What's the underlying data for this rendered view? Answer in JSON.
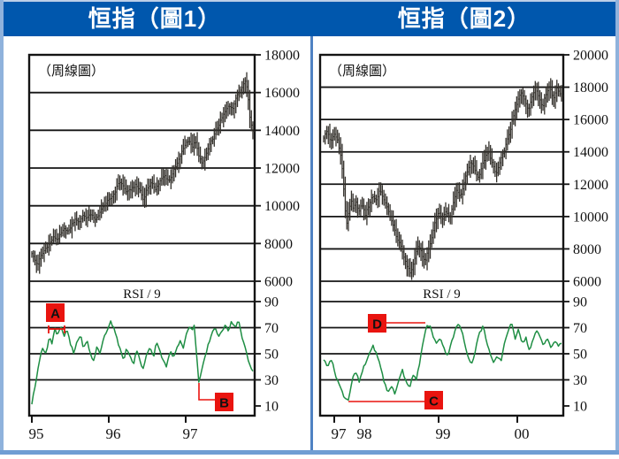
{
  "page": {
    "accent_blue": "#0057ad",
    "border_blue": "#8fb2dc",
    "divider_blue": "#4f82c3",
    "annotation_red": "#e9140f",
    "rsi_green": "#1f8e44",
    "bar_color": "#33302b"
  },
  "header": {
    "left_title": "恒指（圖1）",
    "right_title": "恒指（圖2）"
  },
  "chart_data": [
    {
      "type": "bar",
      "style": "weekly-ohlc-bars-with-rsi",
      "title": "恒指（圖1）",
      "subtitle": "（周線圖）",
      "price_axis": {
        "labels": [
          18000,
          16000,
          14000,
          12000,
          10000,
          8000,
          6000
        ],
        "ylim": [
          6000,
          18000
        ]
      },
      "rsi_axis": {
        "title": "RSI / 9",
        "labels": [
          90,
          70,
          50,
          30,
          10
        ],
        "ylim": [
          10,
          90
        ]
      },
      "x_axis": {
        "ticks": [
          "95",
          "96",
          "97"
        ]
      },
      "price_points": [
        [
          0.0,
          7500
        ],
        [
          0.01,
          7200
        ],
        [
          0.025,
          6850
        ],
        [
          0.04,
          7300
        ],
        [
          0.06,
          7700
        ],
        [
          0.08,
          8000
        ],
        [
          0.1,
          8350
        ],
        [
          0.115,
          8200
        ],
        [
          0.13,
          8500
        ],
        [
          0.15,
          8800
        ],
        [
          0.165,
          8600
        ],
        [
          0.185,
          9100
        ],
        [
          0.2,
          9300
        ],
        [
          0.215,
          9100
        ],
        [
          0.23,
          9500
        ],
        [
          0.25,
          9350
        ],
        [
          0.27,
          9600
        ],
        [
          0.285,
          9200
        ],
        [
          0.3,
          9500
        ],
        [
          0.32,
          9900
        ],
        [
          0.34,
          10200
        ],
        [
          0.358,
          10400
        ],
        [
          0.375,
          10700
        ],
        [
          0.395,
          11300
        ],
        [
          0.41,
          11100
        ],
        [
          0.43,
          10700
        ],
        [
          0.45,
          10900
        ],
        [
          0.47,
          11100
        ],
        [
          0.49,
          10800
        ],
        [
          0.505,
          10300
        ],
        [
          0.52,
          10900
        ],
        [
          0.54,
          11200
        ],
        [
          0.56,
          10900
        ],
        [
          0.58,
          11300
        ],
        [
          0.6,
          11600
        ],
        [
          0.62,
          11300
        ],
        [
          0.64,
          11800
        ],
        [
          0.66,
          12300
        ],
        [
          0.68,
          12900
        ],
        [
          0.695,
          13300
        ],
        [
          0.71,
          13500
        ],
        [
          0.725,
          13100
        ],
        [
          0.74,
          13400
        ],
        [
          0.755,
          12700
        ],
        [
          0.77,
          12200
        ],
        [
          0.785,
          12600
        ],
        [
          0.8,
          13100
        ],
        [
          0.815,
          13500
        ],
        [
          0.83,
          13900
        ],
        [
          0.85,
          14400
        ],
        [
          0.87,
          14900
        ],
        [
          0.89,
          15300
        ],
        [
          0.91,
          15200
        ],
        [
          0.93,
          15900
        ],
        [
          0.95,
          16300
        ],
        [
          0.965,
          16600
        ],
        [
          0.975,
          16200
        ],
        [
          0.985,
          14800
        ],
        [
          1.0,
          13900
        ]
      ],
      "rsi_points": [
        [
          0.0,
          12
        ],
        [
          0.015,
          25
        ],
        [
          0.03,
          42
        ],
        [
          0.05,
          55
        ],
        [
          0.065,
          50
        ],
        [
          0.08,
          63
        ],
        [
          0.09,
          58
        ],
        [
          0.105,
          70
        ],
        [
          0.115,
          64
        ],
        [
          0.13,
          71
        ],
        [
          0.145,
          63
        ],
        [
          0.16,
          68
        ],
        [
          0.175,
          57
        ],
        [
          0.19,
          50
        ],
        [
          0.205,
          60
        ],
        [
          0.22,
          64
        ],
        [
          0.235,
          54
        ],
        [
          0.25,
          60
        ],
        [
          0.265,
          50
        ],
        [
          0.28,
          44
        ],
        [
          0.295,
          56
        ],
        [
          0.31,
          50
        ],
        [
          0.325,
          62
        ],
        [
          0.34,
          68
        ],
        [
          0.355,
          75
        ],
        [
          0.37,
          71
        ],
        [
          0.385,
          62
        ],
        [
          0.4,
          53
        ],
        [
          0.415,
          44
        ],
        [
          0.43,
          55
        ],
        [
          0.445,
          47
        ],
        [
          0.46,
          42
        ],
        [
          0.475,
          53
        ],
        [
          0.49,
          44
        ],
        [
          0.505,
          38
        ],
        [
          0.52,
          50
        ],
        [
          0.535,
          56
        ],
        [
          0.55,
          47
        ],
        [
          0.565,
          60
        ],
        [
          0.58,
          52
        ],
        [
          0.595,
          44
        ],
        [
          0.61,
          40
        ],
        [
          0.625,
          52
        ],
        [
          0.64,
          47
        ],
        [
          0.655,
          55
        ],
        [
          0.67,
          60
        ],
        [
          0.685,
          55
        ],
        [
          0.7,
          65
        ],
        [
          0.715,
          72
        ],
        [
          0.725,
          66
        ],
        [
          0.735,
          73
        ],
        [
          0.745,
          50
        ],
        [
          0.755,
          28
        ],
        [
          0.765,
          34
        ],
        [
          0.78,
          45
        ],
        [
          0.8,
          58
        ],
        [
          0.815,
          66
        ],
        [
          0.83,
          71
        ],
        [
          0.845,
          62
        ],
        [
          0.86,
          67
        ],
        [
          0.875,
          73
        ],
        [
          0.89,
          68
        ],
        [
          0.905,
          75
        ],
        [
          0.92,
          70
        ],
        [
          0.935,
          76
        ],
        [
          0.95,
          62
        ],
        [
          0.965,
          55
        ],
        [
          0.98,
          44
        ],
        [
          1.0,
          37
        ]
      ],
      "annotations": [
        {
          "label": "A"
        },
        {
          "label": "B"
        }
      ]
    },
    {
      "type": "bar",
      "style": "weekly-ohlc-bars-with-rsi",
      "title": "恒指（圖2）",
      "subtitle": "（周線圖）",
      "price_axis": {
        "labels": [
          20000,
          18000,
          16000,
          14000,
          12000,
          10000,
          8000,
          6000
        ],
        "ylim": [
          6000,
          20000
        ]
      },
      "rsi_axis": {
        "title": "RSI / 9",
        "labels": [
          90,
          70,
          50,
          30,
          10
        ],
        "ylim": [
          10,
          90
        ]
      },
      "x_axis": {
        "ticks": [
          "97",
          "98",
          "99",
          "00"
        ]
      },
      "price_points": [
        [
          0.0,
          14900
        ],
        [
          0.015,
          15300
        ],
        [
          0.03,
          14600
        ],
        [
          0.045,
          15100
        ],
        [
          0.06,
          14700
        ],
        [
          0.075,
          13500
        ],
        [
          0.085,
          11600
        ],
        [
          0.095,
          9400
        ],
        [
          0.105,
          10300
        ],
        [
          0.115,
          11000
        ],
        [
          0.125,
          10400
        ],
        [
          0.135,
          10900
        ],
        [
          0.15,
          10300
        ],
        [
          0.16,
          10800
        ],
        [
          0.175,
          10100
        ],
        [
          0.19,
          10700
        ],
        [
          0.205,
          11300
        ],
        [
          0.22,
          11000
        ],
        [
          0.235,
          11600
        ],
        [
          0.25,
          11200
        ],
        [
          0.265,
          10600
        ],
        [
          0.28,
          10000
        ],
        [
          0.295,
          9300
        ],
        [
          0.31,
          8600
        ],
        [
          0.325,
          8100
        ],
        [
          0.34,
          7400
        ],
        [
          0.355,
          6800
        ],
        [
          0.365,
          6500
        ],
        [
          0.38,
          7200
        ],
        [
          0.395,
          8200
        ],
        [
          0.41,
          7800
        ],
        [
          0.425,
          7200
        ],
        [
          0.44,
          7900
        ],
        [
          0.455,
          8700
        ],
        [
          0.47,
          9800
        ],
        [
          0.485,
          10300
        ],
        [
          0.5,
          9800
        ],
        [
          0.515,
          10400
        ],
        [
          0.53,
          9900
        ],
        [
          0.545,
          10800
        ],
        [
          0.56,
          11700
        ],
        [
          0.575,
          11200
        ],
        [
          0.59,
          12100
        ],
        [
          0.605,
          12800
        ],
        [
          0.62,
          13400
        ],
        [
          0.635,
          12900
        ],
        [
          0.65,
          12400
        ],
        [
          0.665,
          13100
        ],
        [
          0.68,
          13700
        ],
        [
          0.695,
          14000
        ],
        [
          0.71,
          13200
        ],
        [
          0.725,
          12600
        ],
        [
          0.74,
          13300
        ],
        [
          0.755,
          13900
        ],
        [
          0.77,
          14600
        ],
        [
          0.785,
          15400
        ],
        [
          0.8,
          16300
        ],
        [
          0.815,
          17100
        ],
        [
          0.83,
          17700
        ],
        [
          0.845,
          17300
        ],
        [
          0.86,
          16500
        ],
        [
          0.875,
          17400
        ],
        [
          0.89,
          18000
        ],
        [
          0.905,
          17400
        ],
        [
          0.92,
          16800
        ],
        [
          0.935,
          17600
        ],
        [
          0.95,
          18100
        ],
        [
          0.965,
          17300
        ],
        [
          0.98,
          17900
        ],
        [
          1.0,
          17500
        ]
      ],
      "rsi_points": [
        [
          0.0,
          46
        ],
        [
          0.015,
          40
        ],
        [
          0.03,
          47
        ],
        [
          0.05,
          34
        ],
        [
          0.07,
          24
        ],
        [
          0.09,
          16
        ],
        [
          0.105,
          15
        ],
        [
          0.12,
          30
        ],
        [
          0.135,
          36
        ],
        [
          0.15,
          28
        ],
        [
          0.165,
          38
        ],
        [
          0.18,
          44
        ],
        [
          0.195,
          52
        ],
        [
          0.21,
          56
        ],
        [
          0.225,
          48
        ],
        [
          0.24,
          40
        ],
        [
          0.255,
          28
        ],
        [
          0.27,
          20
        ],
        [
          0.285,
          26
        ],
        [
          0.3,
          18
        ],
        [
          0.315,
          30
        ],
        [
          0.33,
          38
        ],
        [
          0.345,
          30
        ],
        [
          0.36,
          24
        ],
        [
          0.375,
          33
        ],
        [
          0.39,
          30
        ],
        [
          0.405,
          45
        ],
        [
          0.42,
          60
        ],
        [
          0.43,
          70
        ],
        [
          0.445,
          72
        ],
        [
          0.46,
          64
        ],
        [
          0.475,
          57
        ],
        [
          0.49,
          63
        ],
        [
          0.505,
          55
        ],
        [
          0.52,
          48
        ],
        [
          0.535,
          58
        ],
        [
          0.55,
          66
        ],
        [
          0.565,
          73
        ],
        [
          0.58,
          68
        ],
        [
          0.595,
          56
        ],
        [
          0.61,
          47
        ],
        [
          0.625,
          42
        ],
        [
          0.64,
          55
        ],
        [
          0.655,
          66
        ],
        [
          0.67,
          71
        ],
        [
          0.685,
          60
        ],
        [
          0.7,
          50
        ],
        [
          0.715,
          42
        ],
        [
          0.73,
          48
        ],
        [
          0.745,
          44
        ],
        [
          0.76,
          58
        ],
        [
          0.775,
          68
        ],
        [
          0.79,
          73
        ],
        [
          0.805,
          62
        ],
        [
          0.82,
          70
        ],
        [
          0.835,
          57
        ],
        [
          0.85,
          63
        ],
        [
          0.865,
          52
        ],
        [
          0.88,
          60
        ],
        [
          0.895,
          68
        ],
        [
          0.91,
          63
        ],
        [
          0.925,
          57
        ],
        [
          0.94,
          62
        ],
        [
          0.955,
          54
        ],
        [
          0.97,
          60
        ],
        [
          0.985,
          56
        ],
        [
          1.0,
          58
        ]
      ],
      "annotations": [
        {
          "label": "D"
        },
        {
          "label": "C"
        }
      ]
    }
  ]
}
